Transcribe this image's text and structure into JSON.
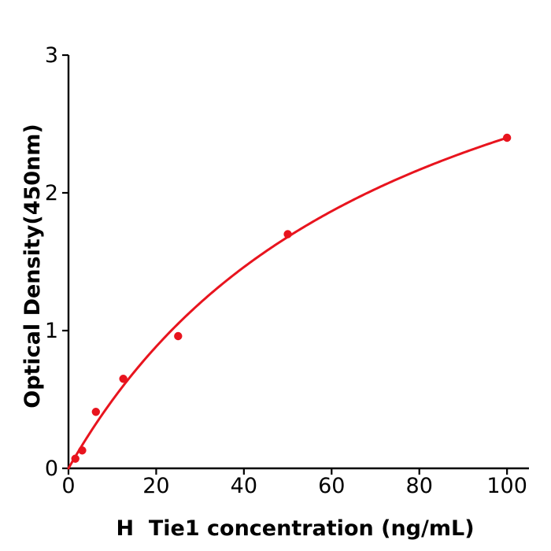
{
  "chart_data": {
    "type": "scatter",
    "title": "",
    "xlabel": "H  Tie1 concentration (ng/mL)",
    "ylabel": "Optical Density(450nm)",
    "xlim": [
      0,
      105
    ],
    "ylim": [
      0,
      3
    ],
    "xticks": [
      0,
      20,
      40,
      60,
      80,
      100
    ],
    "yticks": [
      0,
      1,
      2,
      3
    ],
    "grid": false,
    "legend": "none",
    "series": [
      {
        "name": "standard-points",
        "type": "scatter",
        "x": [
          1.5625,
          3.125,
          6.25,
          12.5,
          25,
          50,
          100
        ],
        "y": [
          0.07,
          0.13,
          0.41,
          0.65,
          0.96,
          1.7,
          2.4
        ]
      },
      {
        "name": "fit-curve",
        "type": "line",
        "model": "y = a*x/(b+x)",
        "a": 4.2,
        "b": 75,
        "x_start": 0,
        "x_end": 100
      }
    ],
    "colors": {
      "series_red": "#e8141e",
      "axis_black": "#000000",
      "background": "#ffffff"
    }
  }
}
